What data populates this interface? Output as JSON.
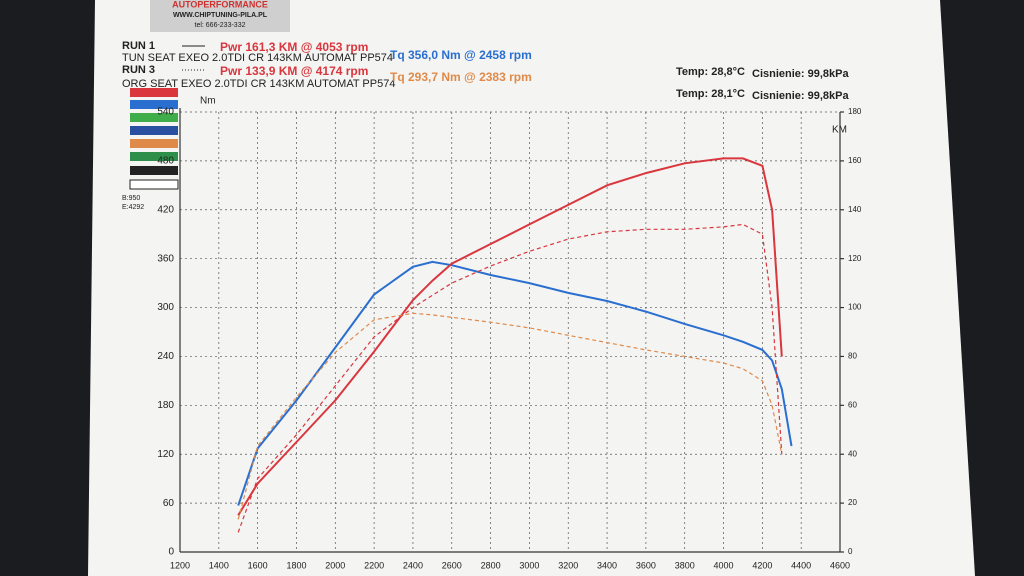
{
  "header": {
    "company": "AUTOPERFORMANCE",
    "website": "WWW.CHIPTUNING-PILA.PL",
    "phone": "tel: 666-233-332"
  },
  "chart_data": {
    "type": "line",
    "runs": [
      {
        "label": "RUN 1",
        "power": "Pwr  161,3 KM @ 4053 rpm",
        "torque": "Tq 356,0 Nm @ 2458 rpm",
        "description": "TUN SEAT EXEO 2.0TDI CR 143KM AUTOMAT PP574"
      },
      {
        "label": "RUN 3",
        "power": "Pwr  133,9 KM @ 4174 rpm",
        "torque": "Tq 293,7 Nm @ 2383 rpm",
        "description": "ORG SEAT EXEO 2.0TDI CR 143KM AUTOMAT PP574"
      }
    ],
    "conditions": [
      {
        "temp": "Temp: 28,8°C",
        "pressure": "Cisnienie: 99,8kPa"
      },
      {
        "temp": "Temp: 28,1°C",
        "pressure": "Cisnienie: 99,8kPa"
      }
    ],
    "y_label": "Nm",
    "y2_label": "KM",
    "side_labels": [
      "B:950",
      "E:4292"
    ],
    "x": [
      1500,
      1600,
      1800,
      2000,
      2200,
      2400,
      2500,
      2600,
      2800,
      3000,
      3200,
      3400,
      3600,
      3800,
      4000,
      4100,
      4200,
      4250,
      4300,
      4350
    ],
    "xlim": [
      1200,
      4600
    ],
    "xticks": [
      1200,
      1400,
      1600,
      1800,
      2000,
      2200,
      2400,
      2600,
      2800,
      3000,
      3200,
      3400,
      3600,
      3800,
      4000,
      4200,
      4400,
      4600
    ],
    "ylim": [
      0,
      540
    ],
    "yticks": [
      0,
      60,
      120,
      180,
      240,
      300,
      360,
      420,
      480,
      540
    ],
    "y2lim": [
      0,
      180
    ],
    "y2ticks": [
      0,
      20,
      40,
      60,
      80,
      100,
      120,
      140,
      160,
      180
    ],
    "grid": true,
    "series": [
      {
        "color": "#2a6fd0",
        "dash": false,
        "values": [
          57,
          127,
          186,
          251,
          316,
          350,
          356,
          352,
          340,
          330,
          318,
          308,
          295,
          280,
          266,
          258,
          248,
          235,
          200,
          130
        ]
      },
      {
        "color": "#d9363e",
        "dash": false,
        "axis": "y2",
        "values": [
          15,
          28,
          45,
          62,
          82,
          103,
          111,
          118,
          126,
          134,
          142,
          150,
          155,
          159,
          161,
          161,
          158,
          140,
          80,
          null
        ]
      },
      {
        "color": "#d9363e",
        "dash": true,
        "axis": "y2",
        "values": [
          8,
          30,
          48,
          68,
          88,
          100,
          105,
          110,
          117,
          123,
          128,
          131,
          132,
          132,
          133,
          134,
          130,
          100,
          40,
          null
        ]
      },
      {
        "color": "#e08a4a",
        "dash": true,
        "values": [
          40,
          130,
          190,
          245,
          285,
          293,
          291,
          288,
          282,
          275,
          266,
          257,
          248,
          240,
          232,
          225,
          210,
          180,
          120,
          null
        ]
      }
    ]
  }
}
